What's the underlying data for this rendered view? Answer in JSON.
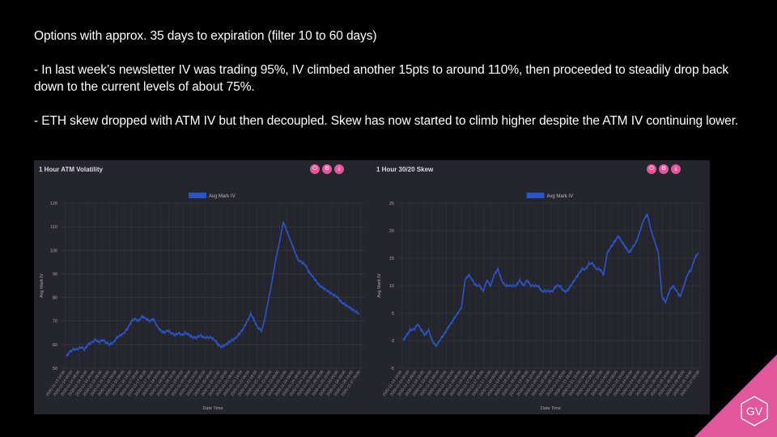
{
  "text": {
    "line1": "Options with approx. 35 days to expiration (filter 10 to 60 days)",
    "bullet1": "- In last week’s newsletter IV was trading 95%, IV climbed another 15pts to around 110%, then proceeded to steadily drop back down to the current levels of about 75%.",
    "bullet2": "- ETH skew dropped with ATM IV but then decoupled. Skew has now started to climb higher despite the ATM IV continuing lower."
  },
  "logo": {
    "text": "GV",
    "color": "#e2579b"
  },
  "panel_icons": [
    "power-icon",
    "settings-icon",
    "download-icon"
  ],
  "chart_data": [
    {
      "type": "line",
      "title": "1 Hour ATM Volatility",
      "xlabel": "Date Time",
      "ylabel": "Avg Mark IV",
      "ylim": [
        50,
        120
      ],
      "yticks": [
        50,
        60,
        70,
        80,
        90,
        100,
        110,
        120
      ],
      "grid": true,
      "legend": "top-center",
      "series": [
        {
          "name": "Avg Mark IV",
          "color": "#2a55c8",
          "values": [
            55,
            57,
            58,
            58,
            59,
            58,
            60,
            61,
            62,
            61,
            62,
            61,
            60,
            61,
            63,
            64,
            65,
            67,
            70,
            71,
            70,
            72,
            71,
            70,
            71,
            68,
            66,
            65,
            66,
            65,
            64,
            65,
            64,
            65,
            64,
            63,
            63,
            64,
            63,
            63,
            63,
            62,
            60,
            59,
            60,
            61,
            62,
            63,
            65,
            67,
            70,
            73,
            70,
            67,
            66,
            72,
            80,
            88,
            97,
            104,
            112,
            108,
            104,
            100,
            96,
            95,
            94,
            91,
            89,
            87,
            85,
            84,
            83,
            82,
            81,
            80,
            78,
            77,
            76,
            75,
            74,
            73
          ]
        }
      ]
    },
    {
      "type": "line",
      "title": "1 Hour 30/20 Skew",
      "xlabel": "Date Time",
      "ylabel": "Avg Mark IV",
      "ylim": [
        -5,
        25
      ],
      "yticks": [
        -5,
        0,
        5,
        10,
        15,
        20,
        25
      ],
      "grid": true,
      "legend": "top-center",
      "series": [
        {
          "name": "Avg Mark IV",
          "color": "#2a55c8",
          "values": [
            0,
            1,
            2,
            2,
            3,
            2,
            1,
            2,
            0,
            -1,
            0,
            1,
            2,
            3,
            4,
            5,
            6,
            11,
            12,
            11,
            10,
            10,
            9,
            11,
            10,
            12,
            13,
            11,
            10,
            10,
            10,
            10,
            11,
            10,
            11,
            10,
            10,
            10,
            9,
            9,
            9,
            9,
            10,
            10,
            9,
            9,
            10,
            11,
            12,
            13,
            13,
            14,
            14,
            13,
            13,
            12,
            16,
            17,
            18,
            19,
            18,
            17,
            16,
            17,
            18,
            20,
            22,
            23,
            20,
            18,
            16,
            8,
            7,
            9,
            10,
            9,
            8,
            10,
            12,
            13,
            15,
            16
          ]
        }
      ]
    }
  ],
  "x_tick_labels": [
    "2020-11-13 16:00",
    "2020-11-14 00:00",
    "2020-11-14 08:00",
    "2020-11-14 16:00",
    "2020-11-15 00:00",
    "2020-11-15 08:00",
    "2020-11-15 16:00",
    "2020-11-16 00:00",
    "2020-11-16 08:00",
    "2020-11-16 16:00",
    "2020-11-17 00:00",
    "2020-11-17 08:00",
    "2020-11-17 16:00",
    "2020-11-18 00:00",
    "2020-11-18 08:00",
    "2020-11-18 16:00",
    "2020-11-19 00:00",
    "2020-11-19 08:00",
    "2020-11-19 16:00",
    "2020-11-20 00:00",
    "2020-11-20 08:00",
    "2020-11-20 16:00",
    "2020-11-21 00:00",
    "2020-11-21 08:00",
    "2020-11-21 16:00",
    "2020-11-22 00:00",
    "2020-11-22 08:00",
    "2020-11-22 16:00",
    "2020-11-23 00:00",
    "2020-11-23 08:00",
    "2020-11-23 16:00",
    "2020-11-24 00:00",
    "2020-11-24 08:00",
    "2020-11-24 16:00",
    "2020-11-25 00:00",
    "2020-11-25 08:00",
    "2020-11-25 16:00",
    "2020-11-26 00:00",
    "2020-11-26 08:00",
    "2020-11-26 16:00",
    "2020-11-27 00:00"
  ]
}
